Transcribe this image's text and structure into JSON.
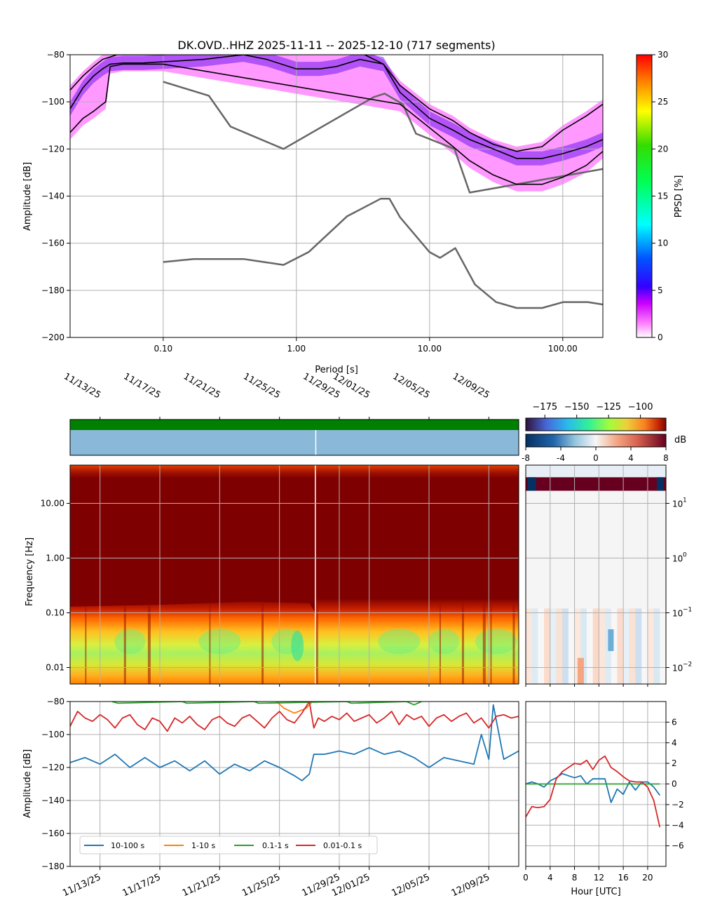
{
  "title": "DK.OVD..HHZ   2025-11-11 -- 2025-12-10  (717 segments)",
  "colors": {
    "black": "#000000",
    "model_gray": "#666666",
    "grid": "#b0b0b0",
    "avail_green": "#008000",
    "avail_blue": "#8ab8d8",
    "series_10_100": "#1f77b4",
    "series_1_10": "#ff7f0e",
    "series_01_1": "#2ca02c",
    "series_001_01": "#d62728",
    "spec_dark": "#7f0000",
    "spec_mid": "#ff5500",
    "spec_low": "#ffd21a"
  },
  "chart_data": [
    {
      "id": "ppsd",
      "type": "line",
      "xscale": "log",
      "xlabel": "Period [s]",
      "ylabel": "Amplitude [dB]",
      "xlim": [
        0.02,
        200
      ],
      "ylim": [
        -200,
        -80
      ],
      "xticks": [
        0.1,
        1,
        10,
        100
      ],
      "xtick_labels": [
        "0.10",
        "1.00",
        "10.00",
        "100.00"
      ],
      "yticks": [
        -80,
        -100,
        -120,
        -140,
        -160,
        -180,
        -200
      ],
      "ytick_labels": [
        "−80",
        "−100",
        "−120",
        "−140",
        "−160",
        "−180",
        "−200"
      ],
      "colorbar": {
        "label": "PPSD [%]",
        "range": [
          0,
          30
        ],
        "ticks": [
          0,
          5,
          10,
          15,
          20,
          25,
          30
        ],
        "tick_labels": [
          "0",
          "5",
          "10",
          "15",
          "20",
          "25",
          "30"
        ]
      },
      "noise_models": [
        {
          "name": "NHNM",
          "x": [
            0.1,
            0.22,
            0.32,
            0.8,
            3.8,
            4.6,
            6.3,
            7.9,
            15.4,
            20,
            200
          ],
          "y": [
            -91.5,
            -97.4,
            -110.5,
            -120,
            -98,
            -96.5,
            -101,
            -113.5,
            -120,
            -138.5,
            -128.5
          ]
        },
        {
          "name": "NLNM",
          "x": [
            0.1,
            0.17,
            0.4,
            0.8,
            1.24,
            2.4,
            4.3,
            5,
            6,
            10,
            12,
            15.6,
            21.9,
            31.6,
            45,
            70,
            101,
            154,
            200
          ],
          "y": [
            -168,
            -166.7,
            -166.7,
            -169.2,
            -163.7,
            -148.6,
            -141.1,
            -141.1,
            -149,
            -163.8,
            -166.2,
            -162.1,
            -177.5,
            -185,
            -187.5,
            -187.5,
            -185,
            -185,
            -186
          ]
        },
        {
          "name": "upper_percentile",
          "x": [
            0.02,
            0.025,
            0.03,
            0.035,
            0.045,
            0.06,
            0.1,
            0.2,
            0.4,
            0.6,
            1,
            1.5,
            2,
            3,
            4.5,
            6,
            10,
            15,
            20,
            30,
            45,
            70,
            100,
            150,
            200
          ],
          "y": [
            -95,
            -89,
            -85,
            -82,
            -80,
            -80,
            -80,
            -79,
            -79,
            -79,
            -79,
            -78.5,
            -79,
            -79,
            -84,
            -93,
            -103,
            -108,
            -113,
            -118,
            -121,
            -119,
            -112,
            -106,
            -101
          ]
        },
        {
          "name": "mode",
          "x": [
            0.02,
            0.025,
            0.03,
            0.035,
            0.04,
            0.05,
            0.07,
            0.1,
            0.2,
            0.4,
            0.6,
            1,
            1.5,
            2,
            3,
            4.5,
            6,
            10,
            15,
            20,
            30,
            45,
            70,
            100,
            150,
            200
          ],
          "y": [
            -103,
            -94,
            -89,
            -86,
            -84,
            -83.5,
            -83.5,
            -83,
            -82,
            -80,
            -82,
            -86,
            -86,
            -85,
            -82,
            -84,
            -96,
            -107,
            -112,
            -116,
            -120,
            -124,
            -124,
            -122,
            -119,
            -116
          ]
        },
        {
          "name": "lower_percentile",
          "x": [
            0.02,
            0.025,
            0.03,
            0.035,
            0.037,
            0.04,
            0.05,
            0.07,
            0.1,
            6,
            10,
            15,
            20,
            30,
            45,
            70,
            100,
            150,
            200
          ],
          "y": [
            -113,
            -107,
            -104,
            -101,
            -100,
            -85,
            -84,
            -84,
            -84,
            -101,
            -111,
            -119,
            -125,
            -131,
            -135,
            -135,
            -132,
            -127,
            -121
          ]
        }
      ]
    },
    {
      "id": "spectrogram",
      "type": "heatmap",
      "ylabel": "Frequency [Hz]",
      "yscale": "log",
      "ylim": [
        0.005,
        50
      ],
      "yticks": [
        10,
        1,
        0.1,
        0.01
      ],
      "ytick_labels": [
        "10.00",
        "1.00",
        "0.10",
        "0.01"
      ],
      "date_ticks": [
        "11/13/25",
        "11/17/25",
        "11/21/25",
        "11/25/25",
        "11/29/25",
        "12/01/25",
        "12/05/25",
        "12/09/25"
      ],
      "date_tick_days": [
        2,
        6,
        10,
        14,
        18,
        20,
        24,
        28
      ],
      "day_range": [
        0,
        30
      ],
      "gap_day": 16.4,
      "colorbar_top": {
        "ticks": [
          -175,
          -150,
          -125,
          -100
        ],
        "tick_labels": [
          "−175",
          "−150",
          "−125",
          "−100"
        ],
        "range": [
          -190,
          -80
        ]
      },
      "colorbar_diff": {
        "label": "dB",
        "ticks": [
          -8,
          -4,
          0,
          4,
          8
        ],
        "tick_labels": [
          "-8",
          "-4",
          "0",
          "4",
          "8"
        ],
        "range": [
          -8,
          8
        ]
      },
      "hourly_yticks": [
        "10",
        "10",
        "10",
        "10"
      ],
      "hourly_ytick_exps": [
        "1",
        "0",
        "−1",
        "−2"
      ]
    },
    {
      "id": "band_timeseries",
      "type": "line",
      "ylabel": "Amplitude [dB]",
      "ylim": [
        -180,
        -80
      ],
      "yticks": [
        -80,
        -100,
        -120,
        -140,
        -160,
        -180
      ],
      "ytick_labels": [
        "−80",
        "−100",
        "−120",
        "−140",
        "−160",
        "−180"
      ],
      "date_ticks": [
        "11/13/25",
        "11/17/25",
        "11/21/25",
        "11/25/25",
        "11/29/25",
        "12/01/25",
        "12/05/25",
        "12/09/25"
      ],
      "date_tick_days": [
        2,
        6,
        10,
        14,
        18,
        20,
        24,
        28
      ],
      "day_range": [
        0,
        30
      ],
      "legend": [
        "10-100 s",
        "1-10 s",
        "0.1-1 s",
        "0.01-0.1 s"
      ],
      "series": [
        {
          "name": "10-100 s",
          "days": [
            0,
            1,
            2,
            3,
            4,
            5,
            6,
            7,
            8,
            9,
            10,
            11,
            12,
            13,
            14,
            15,
            15.5,
            16,
            16.3,
            17,
            18,
            19,
            20,
            21,
            22,
            23,
            24,
            25,
            26,
            27,
            27.5,
            28,
            28.3,
            29,
            30
          ],
          "values": [
            -117,
            -114,
            -118,
            -112,
            -120,
            -114,
            -120,
            -116,
            -122,
            -116,
            -124,
            -118,
            -122,
            -116,
            -120,
            -125,
            -128,
            -124,
            -112,
            -112,
            -110,
            -112,
            -108,
            -112,
            -110,
            -114,
            -120,
            -114,
            -116,
            -118,
            -100,
            -115,
            -82,
            -115,
            -110
          ]
        },
        {
          "name": "1-10 s",
          "days": [
            13.8,
            14.3,
            15,
            15.8,
            16.2
          ],
          "values": [
            -80,
            -84,
            -87,
            -84,
            -80
          ]
        },
        {
          "name": "0.1-1 s",
          "days": [
            2.8,
            3.2,
            7.5,
            7.8,
            12.3,
            12.6,
            18.5,
            18.8,
            22.5,
            23,
            23.5
          ],
          "values": [
            -80,
            -81,
            -80,
            -81,
            -80,
            -81,
            -80,
            -81,
            -80,
            -82,
            -80
          ]
        },
        {
          "name": "0.01-0.1 s",
          "days": [
            0,
            0.5,
            1,
            1.5,
            2,
            2.5,
            3,
            3.5,
            4,
            4.5,
            5,
            5.5,
            6,
            6.5,
            7,
            7.5,
            8,
            8.5,
            9,
            9.5,
            10,
            10.5,
            11,
            11.5,
            12,
            12.5,
            13,
            13.5,
            14,
            14.5,
            15,
            15.5,
            16,
            16.3,
            16.6,
            17,
            17.5,
            18,
            18.5,
            19,
            19.5,
            20,
            20.5,
            21,
            21.5,
            22,
            22.5,
            23,
            23.5,
            24,
            24.5,
            25,
            25.5,
            26,
            26.5,
            27,
            27.5,
            28,
            28.5,
            29,
            29.5,
            30
          ],
          "values": [
            -95,
            -86,
            -90,
            -92,
            -88,
            -91,
            -96,
            -90,
            -88,
            -94,
            -97,
            -90,
            -92,
            -98,
            -90,
            -93,
            -89,
            -94,
            -97,
            -91,
            -89,
            -93,
            -95,
            -90,
            -88,
            -92,
            -96,
            -90,
            -86,
            -91,
            -93,
            -87,
            -80,
            -96,
            -90,
            -92,
            -89,
            -91,
            -87,
            -92,
            -90,
            -88,
            -93,
            -90,
            -86,
            -94,
            -88,
            -91,
            -89,
            -95,
            -90,
            -88,
            -92,
            -89,
            -87,
            -93,
            -90,
            -96,
            -89,
            -88,
            -90,
            -89
          ]
        }
      ]
    },
    {
      "id": "hourly_diff",
      "type": "line",
      "xlabel": "Hour [UTC]",
      "xlim": [
        0,
        23
      ],
      "ylim": [
        -8,
        8
      ],
      "xticks": [
        0,
        4,
        8,
        12,
        16,
        20
      ],
      "xtick_labels": [
        "0",
        "4",
        "8",
        "12",
        "16",
        "20"
      ],
      "yticks": [
        6,
        4,
        2,
        0,
        -2,
        -4,
        -6
      ],
      "ytick_labels": [
        "6",
        "4",
        "2",
        "0",
        "−2",
        "−4",
        "−6"
      ],
      "series": [
        {
          "name": "10-100 s",
          "hours": [
            0,
            1,
            2,
            3,
            4,
            5,
            6,
            7,
            8,
            9,
            10,
            11,
            12,
            13,
            14,
            15,
            16,
            17,
            18,
            19,
            20,
            21,
            22
          ],
          "values": [
            0,
            0.2,
            0,
            -0.3,
            0.3,
            0.6,
            1.0,
            0.8,
            0.6,
            0.8,
            0,
            0.5,
            0.5,
            0.5,
            -1.8,
            -0.5,
            -1.0,
            0.2,
            -0.6,
            0.2,
            0.2,
            -0.3,
            -1.1
          ]
        },
        {
          "name": "0.1-1 s",
          "hours": [
            0,
            22
          ],
          "values": [
            0,
            0
          ]
        },
        {
          "name": "0.01-0.1 s",
          "hours": [
            0,
            1,
            2,
            3,
            4,
            5,
            6,
            7,
            8,
            9,
            10,
            11,
            12,
            13,
            14,
            15,
            16,
            17,
            18,
            19,
            20,
            21,
            22
          ],
          "values": [
            -3.2,
            -2.2,
            -2.3,
            -2.2,
            -1.5,
            0.5,
            1.2,
            1.6,
            2.0,
            1.9,
            2.3,
            1.4,
            2.3,
            2.7,
            1.6,
            1.2,
            0.7,
            0.3,
            0.2,
            0.2,
            -0.3,
            -1.6,
            -4.2
          ]
        }
      ]
    }
  ]
}
